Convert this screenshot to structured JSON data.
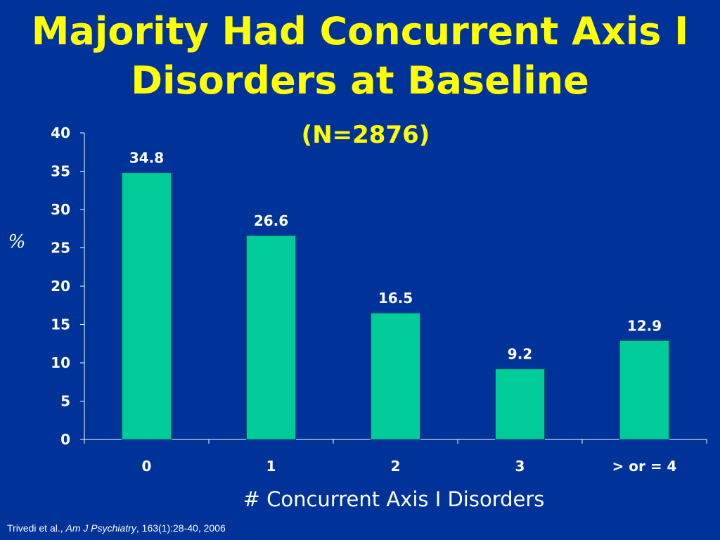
{
  "slide": {
    "title_line1": "Majority Had Concurrent Axis I",
    "title_line2": "Disorders at Baseline",
    "subtitle": "(N=2876)"
  },
  "colors": {
    "background": "#003399",
    "title": "#ffff00",
    "bar": "#00cc99",
    "text": "#ffffff"
  },
  "chart_data": {
    "type": "bar",
    "categories": [
      "0",
      "1",
      "2",
      "3",
      "> or = 4"
    ],
    "values": [
      34.8,
      26.6,
      16.5,
      9.2,
      12.9
    ],
    "value_labels": [
      "34.8",
      "26.6",
      "16.5",
      "9.2",
      "12.9"
    ],
    "title": "(N=2876)",
    "xlabel": "# Concurrent Axis I Disorders",
    "ylabel": "%",
    "ylim": [
      0,
      40
    ],
    "yticks": [
      0,
      5,
      10,
      15,
      20,
      25,
      30,
      35,
      40
    ],
    "grid": false,
    "legend": "none"
  },
  "footer": {
    "authors": "Trivedi et al.,",
    "journal": "Am J Psychiatry",
    "citation": ", 163(1):28-40, 2006"
  }
}
